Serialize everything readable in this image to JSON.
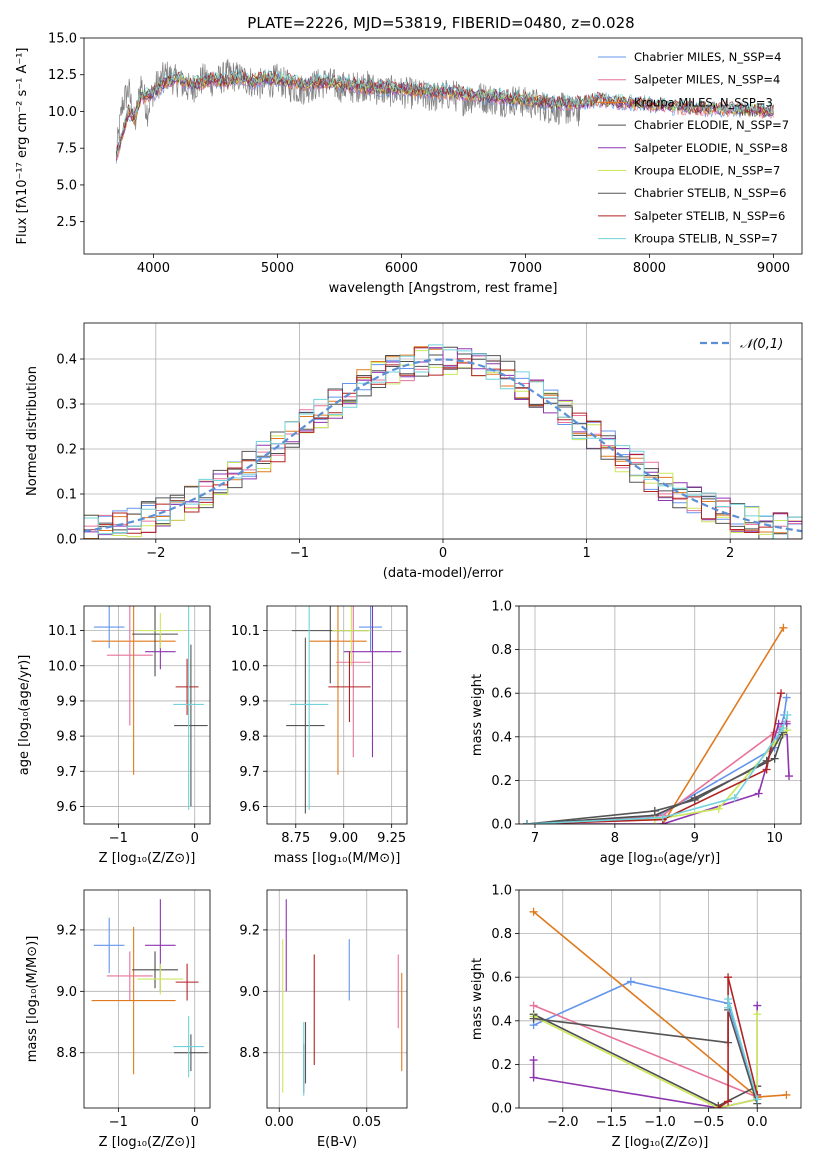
{
  "figure": {
    "title": "PLATE=2226, MJD=53819, FIBERID=0480, z=0.028"
  },
  "model_colors": [
    "#6495ed",
    "#e7739b",
    "#e07a1f",
    "#4d4d4d",
    "#8e35b0",
    "#cbe85c",
    "#555555",
    "#b22222",
    "#72d2dc"
  ],
  "chart_data": [
    {
      "id": "spectrum",
      "type": "line",
      "title": "PLATE=2226, MJD=53819, FIBERID=0480, z=0.028",
      "xlabel": "wavelength [Angstrom, rest frame]",
      "ylabel": "Flux [fλ10⁻¹⁷ erg cm⁻² s⁻¹ A⁻¹]",
      "xlim": [
        3440,
        9230
      ],
      "ylim": [
        0.3,
        15.0
      ],
      "xticks": [
        4000,
        5000,
        6000,
        7000,
        8000,
        9000
      ],
      "yticks": [
        2.5,
        5.0,
        7.5,
        10.0,
        12.5,
        15.0
      ],
      "ytick_labels": [
        "2.5",
        "5.0",
        "7.5",
        "10.0",
        "12.5",
        "15.0"
      ],
      "grid": false,
      "legend_position": "top-right",
      "legend": [
        "Chabrier MILES, N_SSP=4",
        "Salpeter MILES, N_SSP=4",
        "Kroupa MILES, N_SSP=3",
        "Chabrier ELODIE, N_SSP=7",
        "Salpeter ELODIE, N_SSP=8",
        "Kroupa ELODIE, N_SSP=7",
        "Chabrier STELIB, N_SSP=6",
        "Salpeter STELIB, N_SSP=6",
        "Kroupa STELIB, N_SSP=7"
      ],
      "data_series": {
        "name": "data",
        "color": "#808080",
        "x": [
          3700,
          3750,
          3800,
          3850,
          3900,
          3950,
          4000,
          4050,
          4100,
          4200,
          4300,
          4400,
          4500,
          4600,
          4700,
          4800,
          4900,
          5000,
          5100,
          5200,
          5300,
          5400,
          5500,
          5600,
          5700,
          5800,
          5900,
          6000,
          6100,
          6200,
          6300,
          6400,
          6500,
          6600,
          6700,
          6800,
          6900,
          7000,
          7100,
          7200,
          7300,
          7400
        ],
        "y": [
          7.0,
          10.5,
          11.5,
          9.0,
          12.0,
          10.0,
          11.5,
          12.0,
          12.5,
          12.0,
          11.5,
          12.2,
          12.0,
          12.5,
          12.3,
          12.0,
          11.8,
          12.2,
          11.7,
          11.5,
          11.8,
          12.0,
          11.7,
          11.6,
          11.8,
          11.5,
          11.4,
          11.3,
          11.2,
          11.0,
          11.0,
          11.2,
          10.8,
          11.0,
          10.9,
          10.7,
          10.8,
          10.6,
          10.5,
          10.2,
          10.2,
          10.0
        ]
      },
      "model_series": {
        "x": [
          3700,
          3800,
          3850,
          3900,
          4000,
          4100,
          4200,
          4300,
          4400,
          4500,
          4600,
          4700,
          4800,
          4900,
          5000,
          5200,
          5400,
          5600,
          5800,
          6000,
          6200,
          6400,
          6600,
          6800,
          7000,
          7200,
          7400,
          7600,
          7800,
          8000,
          8200,
          8400,
          8600,
          8800,
          9000
        ],
        "y": [
          7.0,
          10.0,
          9.5,
          11.0,
          11.2,
          12.0,
          12.3,
          11.8,
          12.0,
          12.2,
          12.0,
          12.4,
          12.0,
          12.3,
          12.2,
          11.9,
          12.0,
          11.8,
          11.6,
          11.5,
          11.4,
          11.3,
          11.1,
          11.0,
          10.8,
          10.6,
          10.5,
          10.8,
          10.6,
          10.5,
          10.3,
          10.2,
          10.2,
          10.1,
          10.0
        ]
      }
    },
    {
      "id": "residuals",
      "type": "histogram",
      "xlabel": "(data-model)/error",
      "ylabel": "Normed distribution",
      "xlim": [
        -2.5,
        2.5
      ],
      "ylim": [
        0.0,
        0.48
      ],
      "xticks": [
        -2,
        -1,
        0,
        1,
        2
      ],
      "xtick_labels": [
        "−2",
        "−1",
        "0",
        "1",
        "2"
      ],
      "yticks": [
        0.0,
        0.1,
        0.2,
        0.3,
        0.4
      ],
      "ytick_labels": [
        "0.0",
        "0.1",
        "0.2",
        "0.3",
        "0.4"
      ],
      "grid": true,
      "legend_position": "top-right",
      "normal_label": "𝒩(0,1)",
      "normal_color": "#5b8fd6",
      "bin_width": 0.1
    },
    {
      "id": "age-z",
      "type": "errorbar",
      "xlabel": "Z [log₁₀(Z/Z⊙)]",
      "ylabel": "age  [log₁₀(age/yr)]",
      "xlim": [
        -1.45,
        0.2
      ],
      "ylim": [
        9.55,
        10.17
      ],
      "xticks": [
        -1,
        0
      ],
      "xtick_labels": [
        "−1",
        "0"
      ],
      "yticks": [
        9.6,
        9.7,
        9.8,
        9.9,
        10.0,
        10.1
      ],
      "ytick_labels": [
        "9.6",
        "9.7",
        "9.8",
        "9.9",
        "10.0",
        "10.1"
      ],
      "grid": true,
      "points": [
        {
          "x": -1.12,
          "xerr": 0.2,
          "y": 10.11,
          "yerr": 0.06
        },
        {
          "x": -0.85,
          "xerr": 0.3,
          "y": 10.03,
          "yerr": 0.2
        },
        {
          "x": -0.8,
          "xerr": 0.55,
          "y": 10.07,
          "yerr": 0.38
        },
        {
          "x": -0.52,
          "xerr": 0.3,
          "y": 10.09,
          "yerr": 0.12
        },
        {
          "x": -0.45,
          "xerr": 0.2,
          "y": 10.04,
          "yerr": 0.05
        },
        {
          "x": -0.45,
          "xerr": 0.3,
          "y": 10.1,
          "yerr": 0.05
        },
        {
          "x": -0.05,
          "xerr": 0.22,
          "y": 9.83,
          "yerr": 0.23
        },
        {
          "x": -0.1,
          "xerr": 0.15,
          "y": 9.94,
          "yerr": 0.08
        },
        {
          "x": -0.08,
          "xerr": 0.2,
          "y": 9.89,
          "yerr": 0.3
        }
      ]
    },
    {
      "id": "age-mass",
      "type": "errorbar",
      "xlabel": "mass [log₁₀(M/M⊙)]",
      "ylabel": "",
      "xlim": [
        8.6,
        9.33
      ],
      "ylim": [
        9.55,
        10.17
      ],
      "xticks": [
        8.75,
        9.0,
        9.25
      ],
      "xtick_labels": [
        "8.75",
        "9.00",
        "9.25"
      ],
      "yticks": [
        9.6,
        9.7,
        9.8,
        9.9,
        10.0,
        10.1
      ],
      "ytick_labels": [
        "9.6",
        "9.7",
        "9.8",
        "9.9",
        "10.0",
        "10.1"
      ],
      "grid": true,
      "points": [
        {
          "x": 9.14,
          "xerr": 0.06,
          "y": 10.11,
          "yerr": 0.07
        },
        {
          "x": 9.05,
          "xerr": 0.09,
          "y": 10.01,
          "yerr": 0.27
        },
        {
          "x": 8.97,
          "xerr": 0.15,
          "y": 10.07,
          "yerr": 0.38
        },
        {
          "x": 8.93,
          "xerr": 0.2,
          "y": 10.1,
          "yerr": 0.15
        },
        {
          "x": 9.15,
          "xerr": 0.15,
          "y": 10.04,
          "yerr": 0.3
        },
        {
          "x": 9.04,
          "xerr": 0.1,
          "y": 10.1,
          "yerr": 0.1
        },
        {
          "x": 8.8,
          "xerr": 0.1,
          "y": 9.83,
          "yerr": 0.25
        },
        {
          "x": 9.03,
          "xerr": 0.11,
          "y": 9.94,
          "yerr": 0.1
        },
        {
          "x": 8.82,
          "xerr": 0.1,
          "y": 9.89,
          "yerr": 0.3
        }
      ]
    },
    {
      "id": "weight-age",
      "type": "line",
      "xlabel": "age  [log₁₀(age/yr)]",
      "ylabel": "mass weight",
      "xlim": [
        6.8,
        10.33
      ],
      "ylim": [
        0.0,
        1.0
      ],
      "xticks": [
        7,
        8,
        9,
        10
      ],
      "xtick_labels": [
        "7",
        "8",
        "9",
        "10"
      ],
      "yticks": [
        0.0,
        0.2,
        0.4,
        0.6,
        0.8,
        1.0
      ],
      "ytick_labels": [
        "0.0",
        "0.2",
        "0.4",
        "0.6",
        "0.8",
        "1.0"
      ],
      "grid": true,
      "series": [
        {
          "x": [
            6.9,
            8.5,
            10.0,
            10.12,
            10.15
          ],
          "y": [
            0.0,
            0.03,
            0.35,
            0.5,
            0.58
          ]
        },
        {
          "x": [
            6.9,
            8.6,
            10.0,
            10.15
          ],
          "y": [
            0.0,
            0.04,
            0.42,
            0.47
          ]
        },
        {
          "x": [
            8.6,
            10.11
          ],
          "y": [
            0.0,
            0.9
          ]
        },
        {
          "x": [
            6.9,
            8.5,
            9.0,
            10.0,
            10.1
          ],
          "y": [
            0.0,
            0.04,
            0.12,
            0.3,
            0.41
          ]
        },
        {
          "x": [
            6.9,
            8.6,
            9.8,
            10.05,
            10.15,
            10.18
          ],
          "y": [
            0.0,
            0.0,
            0.14,
            0.46,
            0.46,
            0.22
          ]
        },
        {
          "x": [
            6.9,
            8.5,
            9.3,
            10.0,
            10.16
          ],
          "y": [
            0.0,
            0.02,
            0.07,
            0.37,
            0.43
          ]
        },
        {
          "x": [
            6.9,
            8.5,
            9.0,
            9.9,
            10.1
          ],
          "y": [
            0.0,
            0.06,
            0.11,
            0.29,
            0.42
          ]
        },
        {
          "x": [
            6.9,
            8.6,
            9.9,
            10.08
          ],
          "y": [
            0.0,
            0.02,
            0.25,
            0.6
          ]
        },
        {
          "x": [
            6.9,
            8.6,
            9.5,
            10.1,
            10.16
          ],
          "y": [
            0.0,
            0.03,
            0.12,
            0.44,
            0.5
          ]
        }
      ]
    },
    {
      "id": "mass-z",
      "type": "errorbar",
      "xlabel": "Z [log₁₀(Z/Z⊙)]",
      "ylabel": "mass [log₁₀(M/M⊙)]",
      "xlim": [
        -1.45,
        0.2
      ],
      "ylim": [
        8.62,
        9.33
      ],
      "xticks": [
        -1,
        0
      ],
      "xtick_labels": [
        "−1",
        "0"
      ],
      "yticks": [
        8.8,
        9.0,
        9.2
      ],
      "ytick_labels": [
        "8.8",
        "9.0",
        "9.2"
      ],
      "grid": true,
      "points": [
        {
          "x": -1.12,
          "xerr": 0.2,
          "y": 9.15,
          "yerr": 0.09
        },
        {
          "x": -0.85,
          "xerr": 0.3,
          "y": 9.05,
          "yerr": 0.08
        },
        {
          "x": -0.8,
          "xerr": 0.55,
          "y": 8.97,
          "yerr": 0.24
        },
        {
          "x": -0.52,
          "xerr": 0.3,
          "y": 9.07,
          "yerr": 0.06
        },
        {
          "x": -0.45,
          "xerr": 0.2,
          "y": 9.15,
          "yerr": 0.15
        },
        {
          "x": -0.45,
          "xerr": 0.3,
          "y": 9.04,
          "yerr": 0.05
        },
        {
          "x": -0.05,
          "xerr": 0.22,
          "y": 8.8,
          "yerr": 0.06
        },
        {
          "x": -0.1,
          "xerr": 0.15,
          "y": 9.03,
          "yerr": 0.06
        },
        {
          "x": -0.08,
          "xerr": 0.2,
          "y": 8.82,
          "yerr": 0.1
        }
      ]
    },
    {
      "id": "mass-ebv",
      "type": "errorbar",
      "xlabel": "E(B-V)",
      "ylabel": "",
      "xlim": [
        -0.007,
        0.073
      ],
      "ylim": [
        8.62,
        9.33
      ],
      "xticks": [
        0.0,
        0.05
      ],
      "xtick_labels": [
        "0.00",
        "0.05"
      ],
      "yticks": [
        8.8,
        9.0,
        9.2
      ],
      "ytick_labels": [
        "8.8",
        "9.0",
        "9.2"
      ],
      "grid": true,
      "points": [
        {
          "x": 0.04,
          "xerr": 0,
          "y": 9.07,
          "yerr": 0.1
        },
        {
          "x": 0.068,
          "xerr": 0,
          "y": 9.0,
          "yerr": 0.12
        },
        {
          "x": 0.07,
          "xerr": 0,
          "y": 8.9,
          "yerr": 0.16
        },
        {
          "x": 0.014,
          "xerr": 0,
          "y": 8.75,
          "yerr": 0.08
        },
        {
          "x": 0.004,
          "xerr": 0,
          "y": 9.15,
          "yerr": 0.15
        },
        {
          "x": 0.002,
          "xerr": 0,
          "y": 8.92,
          "yerr": 0.25
        },
        {
          "x": 0.015,
          "xerr": 0,
          "y": 8.8,
          "yerr": 0.1
        },
        {
          "x": 0.02,
          "xerr": 0,
          "y": 8.94,
          "yerr": 0.18
        },
        {
          "x": 0.014,
          "xerr": 0,
          "y": 8.78,
          "yerr": 0.12
        }
      ]
    },
    {
      "id": "weight-z",
      "type": "line",
      "xlabel": "Z [log₁₀(Z/Z⊙)]",
      "ylabel": "mass weight",
      "xlim": [
        -2.45,
        0.45
      ],
      "ylim": [
        0.0,
        1.0
      ],
      "xticks": [
        -2.0,
        -1.5,
        -1.0,
        -0.5,
        0.0
      ],
      "xtick_labels": [
        "−2.0",
        "−1.5",
        "−1.0",
        "−0.5",
        "0.0"
      ],
      "yticks": [
        0.0,
        0.2,
        0.4,
        0.6,
        0.8,
        1.0
      ],
      "ytick_labels": [
        "0.0",
        "0.2",
        "0.4",
        "0.6",
        "0.8",
        "1.0"
      ],
      "grid": true,
      "series": [
        {
          "x": [
            -2.3,
            -1.3,
            -0.3,
            0.0
          ],
          "y": [
            0.38,
            0.58,
            0.48,
            0.04
          ]
        },
        {
          "x": [
            -2.3,
            0.0
          ],
          "y": [
            0.47,
            0.05
          ]
        },
        {
          "x": [
            -2.3,
            0.0,
            0.3
          ],
          "y": [
            0.9,
            0.05,
            0.06
          ]
        },
        {
          "x": [
            -2.3,
            -0.4,
            0.0
          ],
          "y": [
            0.43,
            0.01,
            0.1
          ]
        },
        {
          "x": [
            -2.3,
            -2.3,
            -0.4,
            0.0,
            0.0
          ],
          "y": [
            0.22,
            0.14,
            0.0,
            0.04,
            0.47
          ]
        },
        {
          "x": [
            -2.3,
            -0.4,
            0.0,
            0.0
          ],
          "y": [
            0.42,
            0.0,
            0.04,
            0.43
          ]
        },
        {
          "x": [
            -2.3,
            -0.3,
            -0.3,
            0.0
          ],
          "y": [
            0.41,
            0.3,
            0.45,
            0.02
          ]
        },
        {
          "x": [
            -0.4,
            -0.3,
            -0.3,
            0.0
          ],
          "y": [
            0.0,
            0.03,
            0.6,
            0.06
          ]
        },
        {
          "x": [
            -0.3,
            -0.3,
            0.0
          ],
          "y": [
            0.46,
            0.5,
            0.04
          ]
        }
      ]
    }
  ]
}
